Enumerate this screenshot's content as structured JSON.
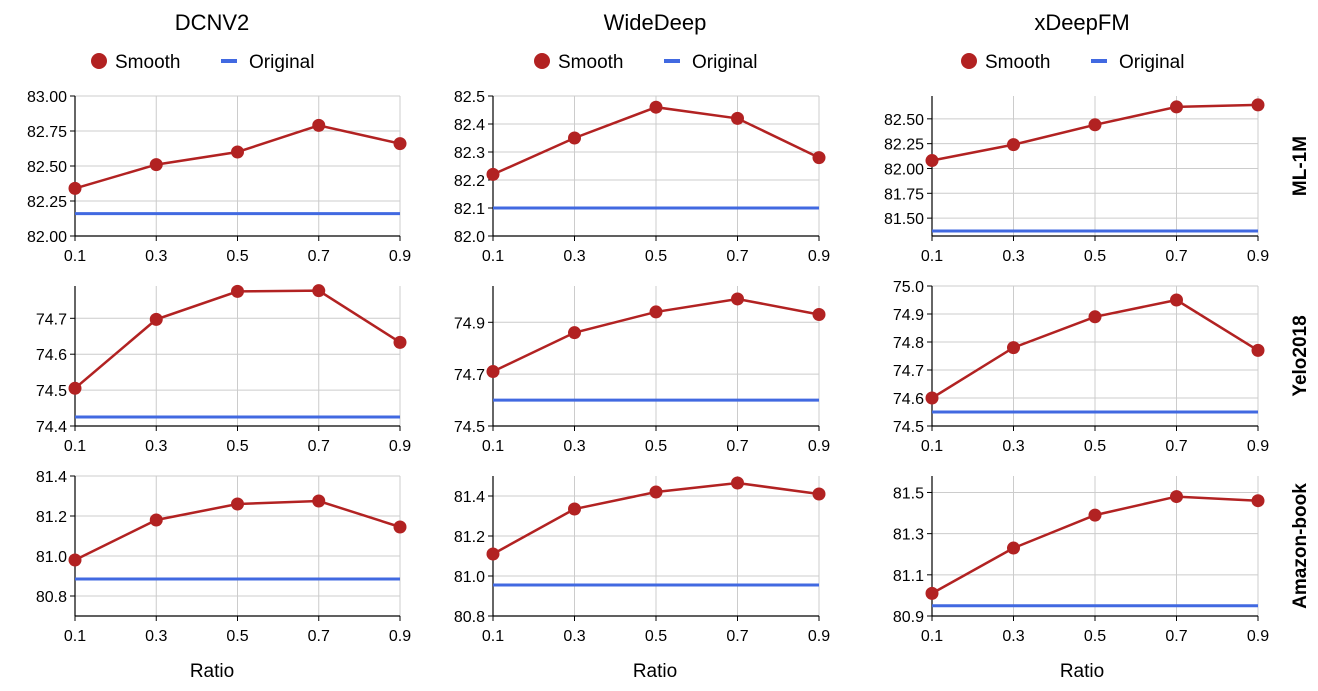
{
  "colors": {
    "smooth": "#b22222",
    "original": "#4169e1",
    "grid": "#cccccc",
    "axis": "#000000"
  },
  "columns": [
    "DCNV2",
    "WideDeep",
    "xDeepFM"
  ],
  "rows": [
    "ML-1M",
    "Yelo2018",
    "Amazon-book"
  ],
  "legend": {
    "smooth": "Smooth",
    "original": "Original"
  },
  "xlabel": "Ratio",
  "chart_data": [
    {
      "type": "line",
      "model": "DCNV2",
      "dataset": "ML-1M",
      "x": [
        0.1,
        0.3,
        0.5,
        0.7,
        0.9
      ],
      "xticks": [
        "0.1",
        "0.3",
        "0.5",
        "0.7",
        "0.9"
      ],
      "ylim": [
        82.0,
        83.0
      ],
      "yticks": [
        "82.00",
        "82.25",
        "82.50",
        "82.75",
        "83.00"
      ],
      "series": [
        {
          "name": "Smooth",
          "values": [
            82.34,
            82.51,
            82.6,
            82.79,
            82.66
          ]
        },
        {
          "name": "Original",
          "values": [
            82.16,
            82.16,
            82.16,
            82.16,
            82.16
          ]
        }
      ]
    },
    {
      "type": "line",
      "model": "WideDeep",
      "dataset": "ML-1M",
      "x": [
        0.1,
        0.3,
        0.5,
        0.7,
        0.9
      ],
      "xticks": [
        "0.1",
        "0.3",
        "0.5",
        "0.7",
        "0.9"
      ],
      "ylim": [
        82.0,
        82.5
      ],
      "yticks": [
        "82.0",
        "82.1",
        "82.2",
        "82.3",
        "82.4",
        "82.5"
      ],
      "series": [
        {
          "name": "Smooth",
          "values": [
            82.22,
            82.35,
            82.46,
            82.42,
            82.28
          ]
        },
        {
          "name": "Original",
          "values": [
            82.1,
            82.1,
            82.1,
            82.1,
            82.1
          ]
        }
      ]
    },
    {
      "type": "line",
      "model": "xDeepFM",
      "dataset": "ML-1M",
      "x": [
        0.1,
        0.3,
        0.5,
        0.7,
        0.9
      ],
      "xticks": [
        "0.1",
        "0.3",
        "0.5",
        "0.7",
        "0.9"
      ],
      "ylim": [
        81.32,
        82.73
      ],
      "yticks": [
        "81.50",
        "81.75",
        "82.00",
        "82.25",
        "82.50"
      ],
      "series": [
        {
          "name": "Smooth",
          "values": [
            82.08,
            82.24,
            82.44,
            82.62,
            82.64
          ]
        },
        {
          "name": "Original",
          "values": [
            81.37,
            81.37,
            81.37,
            81.37,
            81.37
          ]
        }
      ]
    },
    {
      "type": "line",
      "model": "DCNV2",
      "dataset": "Yelo2018",
      "x": [
        0.1,
        0.3,
        0.5,
        0.7,
        0.9
      ],
      "xticks": [
        "0.1",
        "0.3",
        "0.5",
        "0.7",
        "0.9"
      ],
      "ylim": [
        74.4,
        74.79
      ],
      "yticks": [
        "74.4",
        "74.5",
        "74.6",
        "74.7"
      ],
      "series": [
        {
          "name": "Smooth",
          "values": [
            74.505,
            74.697,
            74.775,
            74.777,
            74.633
          ]
        },
        {
          "name": "Original",
          "values": [
            74.425,
            74.425,
            74.425,
            74.425,
            74.425
          ]
        }
      ]
    },
    {
      "type": "line",
      "model": "WideDeep",
      "dataset": "Yelo2018",
      "x": [
        0.1,
        0.3,
        0.5,
        0.7,
        0.9
      ],
      "xticks": [
        "0.1",
        "0.3",
        "0.5",
        "0.7",
        "0.9"
      ],
      "ylim": [
        74.5,
        75.04
      ],
      "yticks": [
        "74.5",
        "74.7",
        "74.9"
      ],
      "series": [
        {
          "name": "Smooth",
          "values": [
            74.71,
            74.86,
            74.94,
            74.99,
            74.93
          ]
        },
        {
          "name": "Original",
          "values": [
            74.6,
            74.6,
            74.6,
            74.6,
            74.6
          ]
        }
      ]
    },
    {
      "type": "line",
      "model": "xDeepFM",
      "dataset": "Yelo2018",
      "x": [
        0.1,
        0.3,
        0.5,
        0.7,
        0.9
      ],
      "xticks": [
        "0.1",
        "0.3",
        "0.5",
        "0.7",
        "0.9"
      ],
      "ylim": [
        74.5,
        75.0
      ],
      "yticks": [
        "74.5",
        "74.6",
        "74.7",
        "74.8",
        "74.9",
        "75.0"
      ],
      "series": [
        {
          "name": "Smooth",
          "values": [
            74.6,
            74.78,
            74.89,
            74.95,
            74.77
          ]
        },
        {
          "name": "Original",
          "values": [
            74.55,
            74.55,
            74.55,
            74.55,
            74.55
          ]
        }
      ]
    },
    {
      "type": "line",
      "model": "DCNV2",
      "dataset": "Amazon-book",
      "x": [
        0.1,
        0.3,
        0.5,
        0.7,
        0.9
      ],
      "xticks": [
        "0.1",
        "0.3",
        "0.5",
        "0.7",
        "0.9"
      ],
      "ylim": [
        80.7,
        81.4
      ],
      "yticks": [
        "80.8",
        "81.0",
        "81.2",
        "81.4"
      ],
      "series": [
        {
          "name": "Smooth",
          "values": [
            80.98,
            81.18,
            81.26,
            81.275,
            81.145
          ]
        },
        {
          "name": "Original",
          "values": [
            80.885,
            80.885,
            80.885,
            80.885,
            80.885
          ]
        }
      ]
    },
    {
      "type": "line",
      "model": "WideDeep",
      "dataset": "Amazon-book",
      "x": [
        0.1,
        0.3,
        0.5,
        0.7,
        0.9
      ],
      "xticks": [
        "0.1",
        "0.3",
        "0.5",
        "0.7",
        "0.9"
      ],
      "ylim": [
        80.8,
        81.5
      ],
      "yticks": [
        "80.8",
        "81.0",
        "81.2",
        "81.4"
      ],
      "series": [
        {
          "name": "Smooth",
          "values": [
            81.11,
            81.335,
            81.42,
            81.465,
            81.41
          ]
        },
        {
          "name": "Original",
          "values": [
            80.955,
            80.955,
            80.955,
            80.955,
            80.955
          ]
        }
      ]
    },
    {
      "type": "line",
      "model": "xDeepFM",
      "dataset": "Amazon-book",
      "x": [
        0.1,
        0.3,
        0.5,
        0.7,
        0.9
      ],
      "xticks": [
        "0.1",
        "0.3",
        "0.5",
        "0.7",
        "0.9"
      ],
      "ylim": [
        80.9,
        81.58
      ],
      "yticks": [
        "80.9",
        "81.1",
        "81.3",
        "81.5"
      ],
      "series": [
        {
          "name": "Smooth",
          "values": [
            81.01,
            81.23,
            81.39,
            81.48,
            81.46
          ]
        },
        {
          "name": "Original",
          "values": [
            80.95,
            80.95,
            80.95,
            80.95,
            80.95
          ]
        }
      ]
    }
  ]
}
